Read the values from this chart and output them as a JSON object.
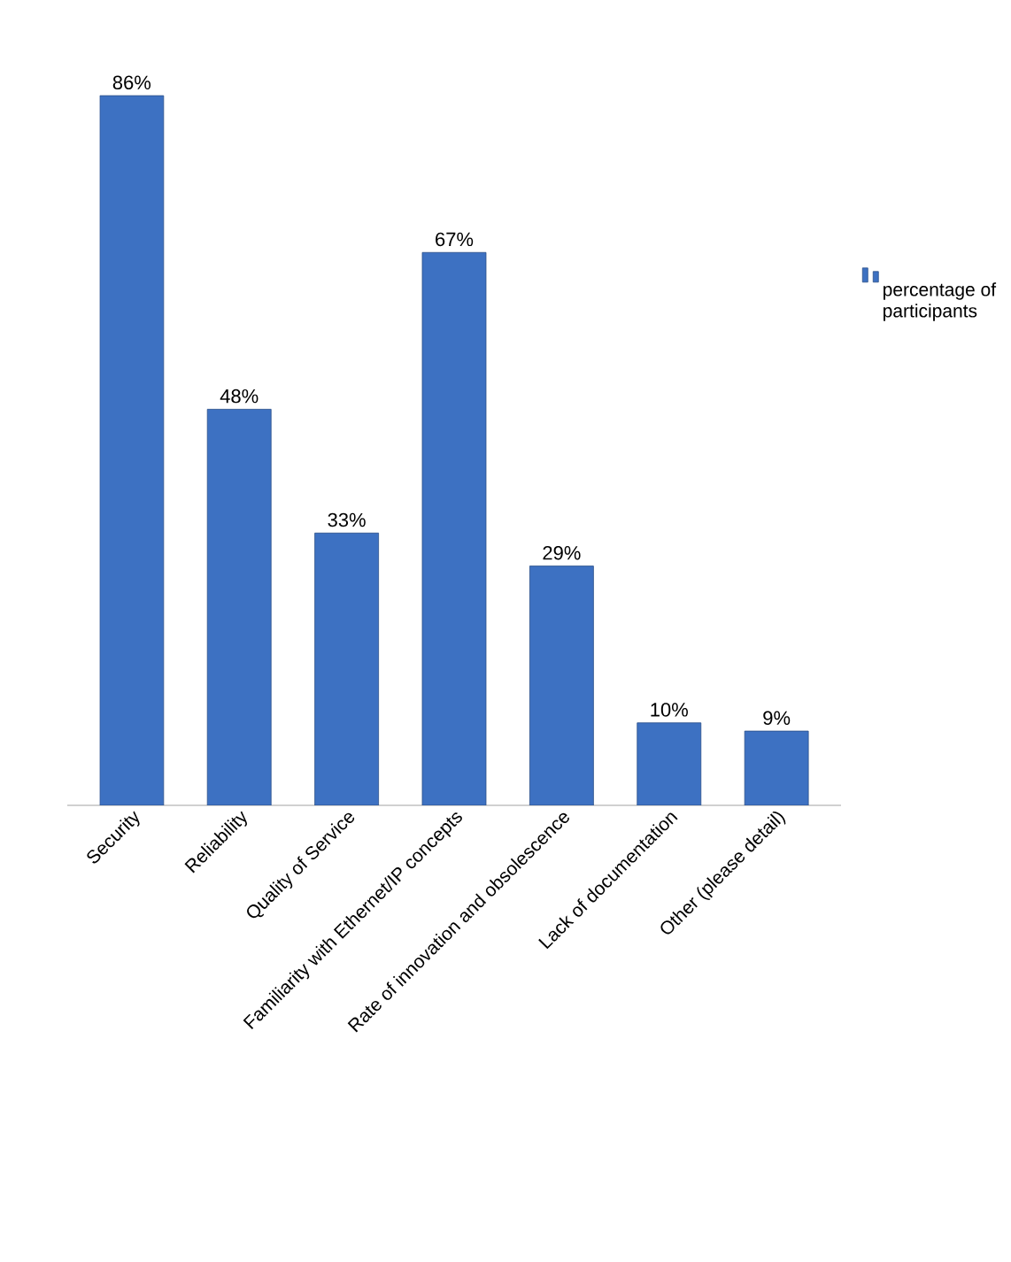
{
  "chart_data": {
    "type": "bar",
    "categories": [
      "Security",
      "Reliability",
      "Quality of Service",
      "Familiarity with Ethernet/IP concepts",
      "Rate of innovation and obsolescence",
      "Lack of documentation",
      "Other (please detail)"
    ],
    "series": [
      {
        "name": "percentage of participants",
        "color": "#3d71c2",
        "values": [
          86,
          48,
          33,
          67,
          29,
          10,
          9
        ],
        "value_labels": [
          "86%",
          "48%",
          "33%",
          "67%",
          "29%",
          "10%",
          "9%"
        ]
      }
    ],
    "legend": "right"
  }
}
